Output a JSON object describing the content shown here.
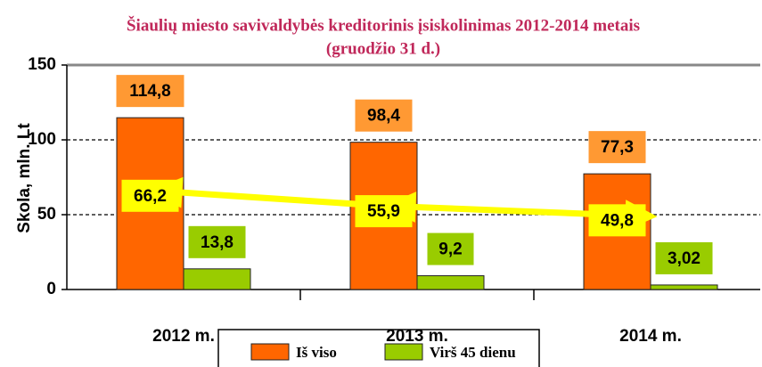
{
  "chart_data": {
    "type": "bar",
    "title": "Šiaulių miesto savivaldybės kreditorinis įsiskolinimas 2012-2014 metais",
    "subtitle": "(gruodžio 31 d.)",
    "y_label": "Skola, mln. Lt",
    "categories": [
      "2012 m.",
      "2013 m.",
      "2014 m."
    ],
    "series": [
      {
        "name": "Iš viso",
        "color": "#ff6600",
        "label_color": "#ff9933",
        "values": [
          114.8,
          98.4,
          77.3
        ],
        "value_labels": [
          "114,8",
          "98,4",
          "77,3"
        ]
      },
      {
        "name": "Virš 45 dienu",
        "color": "#99cc00",
        "label_color": "#99cc00",
        "values": [
          13.8,
          9.2,
          3.02
        ],
        "value_labels": [
          "13,8",
          "9,2",
          "3,02"
        ]
      },
      {
        "type": "line",
        "color": "#ffff00",
        "label_color": "#ffff00",
        "values": [
          66.2,
          55.9,
          49.8
        ],
        "value_labels": [
          "66,2",
          "55,9",
          "49,8"
        ]
      }
    ],
    "ylim": [
      0,
      150
    ],
    "yticks": [
      0,
      50,
      100,
      150
    ],
    "grid": true,
    "legend": "bottom"
  }
}
